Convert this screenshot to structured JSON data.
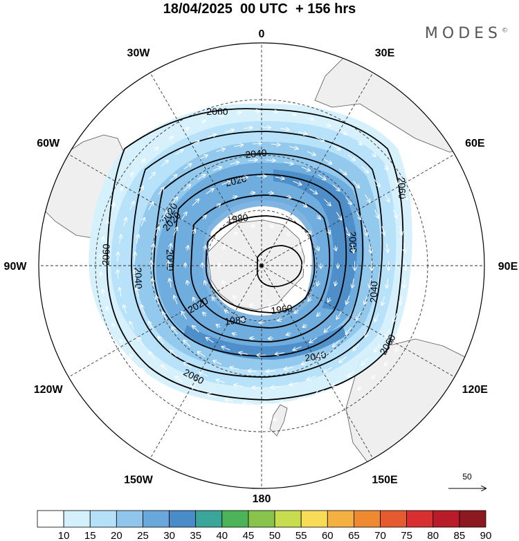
{
  "title": "18/04/2025  00 UTC  + 156 hrs",
  "brand": {
    "name": "MODES",
    "mark": "©"
  },
  "map": {
    "projection": "south polar stereographic",
    "longitude_labels": [
      {
        "text": "0",
        "lon": 0
      },
      {
        "text": "30E",
        "lon": 30
      },
      {
        "text": "60E",
        "lon": 60
      },
      {
        "text": "90E",
        "lon": 90
      },
      {
        "text": "120E",
        "lon": 120
      },
      {
        "text": "150E",
        "lon": 150
      },
      {
        "text": "180",
        "lon": 180
      },
      {
        "text": "150W",
        "lon": -150
      },
      {
        "text": "120W",
        "lon": -120
      },
      {
        "text": "90W",
        "lon": -90
      },
      {
        "text": "60W",
        "lon": -60
      },
      {
        "text": "30W",
        "lon": -30
      }
    ],
    "contour_labels": [
      "2060",
      "2040",
      "2020",
      "1980",
      "2020",
      "2000",
      "2060",
      "2040",
      "2020",
      "1960",
      "1980",
      "2040",
      "2060",
      "2060",
      "2060",
      "2040",
      "2000",
      "2020"
    ],
    "contour_levels": [
      1960,
      1980,
      2000,
      2020,
      2040,
      2060
    ],
    "wind_reference": "50"
  },
  "colorbar": {
    "labels": [
      "10",
      "15",
      "20",
      "25",
      "30",
      "35",
      "40",
      "45",
      "50",
      "55",
      "60",
      "65",
      "70",
      "75",
      "80",
      "85",
      "90"
    ],
    "colors": [
      "#ffffff",
      "#d4f0fc",
      "#b4e0f8",
      "#90c6ec",
      "#6aa8dc",
      "#4a8cc8",
      "#3aa69a",
      "#4cb358",
      "#88c44c",
      "#c8dc50",
      "#f8dc58",
      "#f4b040",
      "#f08a30",
      "#e65a30",
      "#d83030",
      "#b81c28",
      "#8c1820"
    ]
  }
}
